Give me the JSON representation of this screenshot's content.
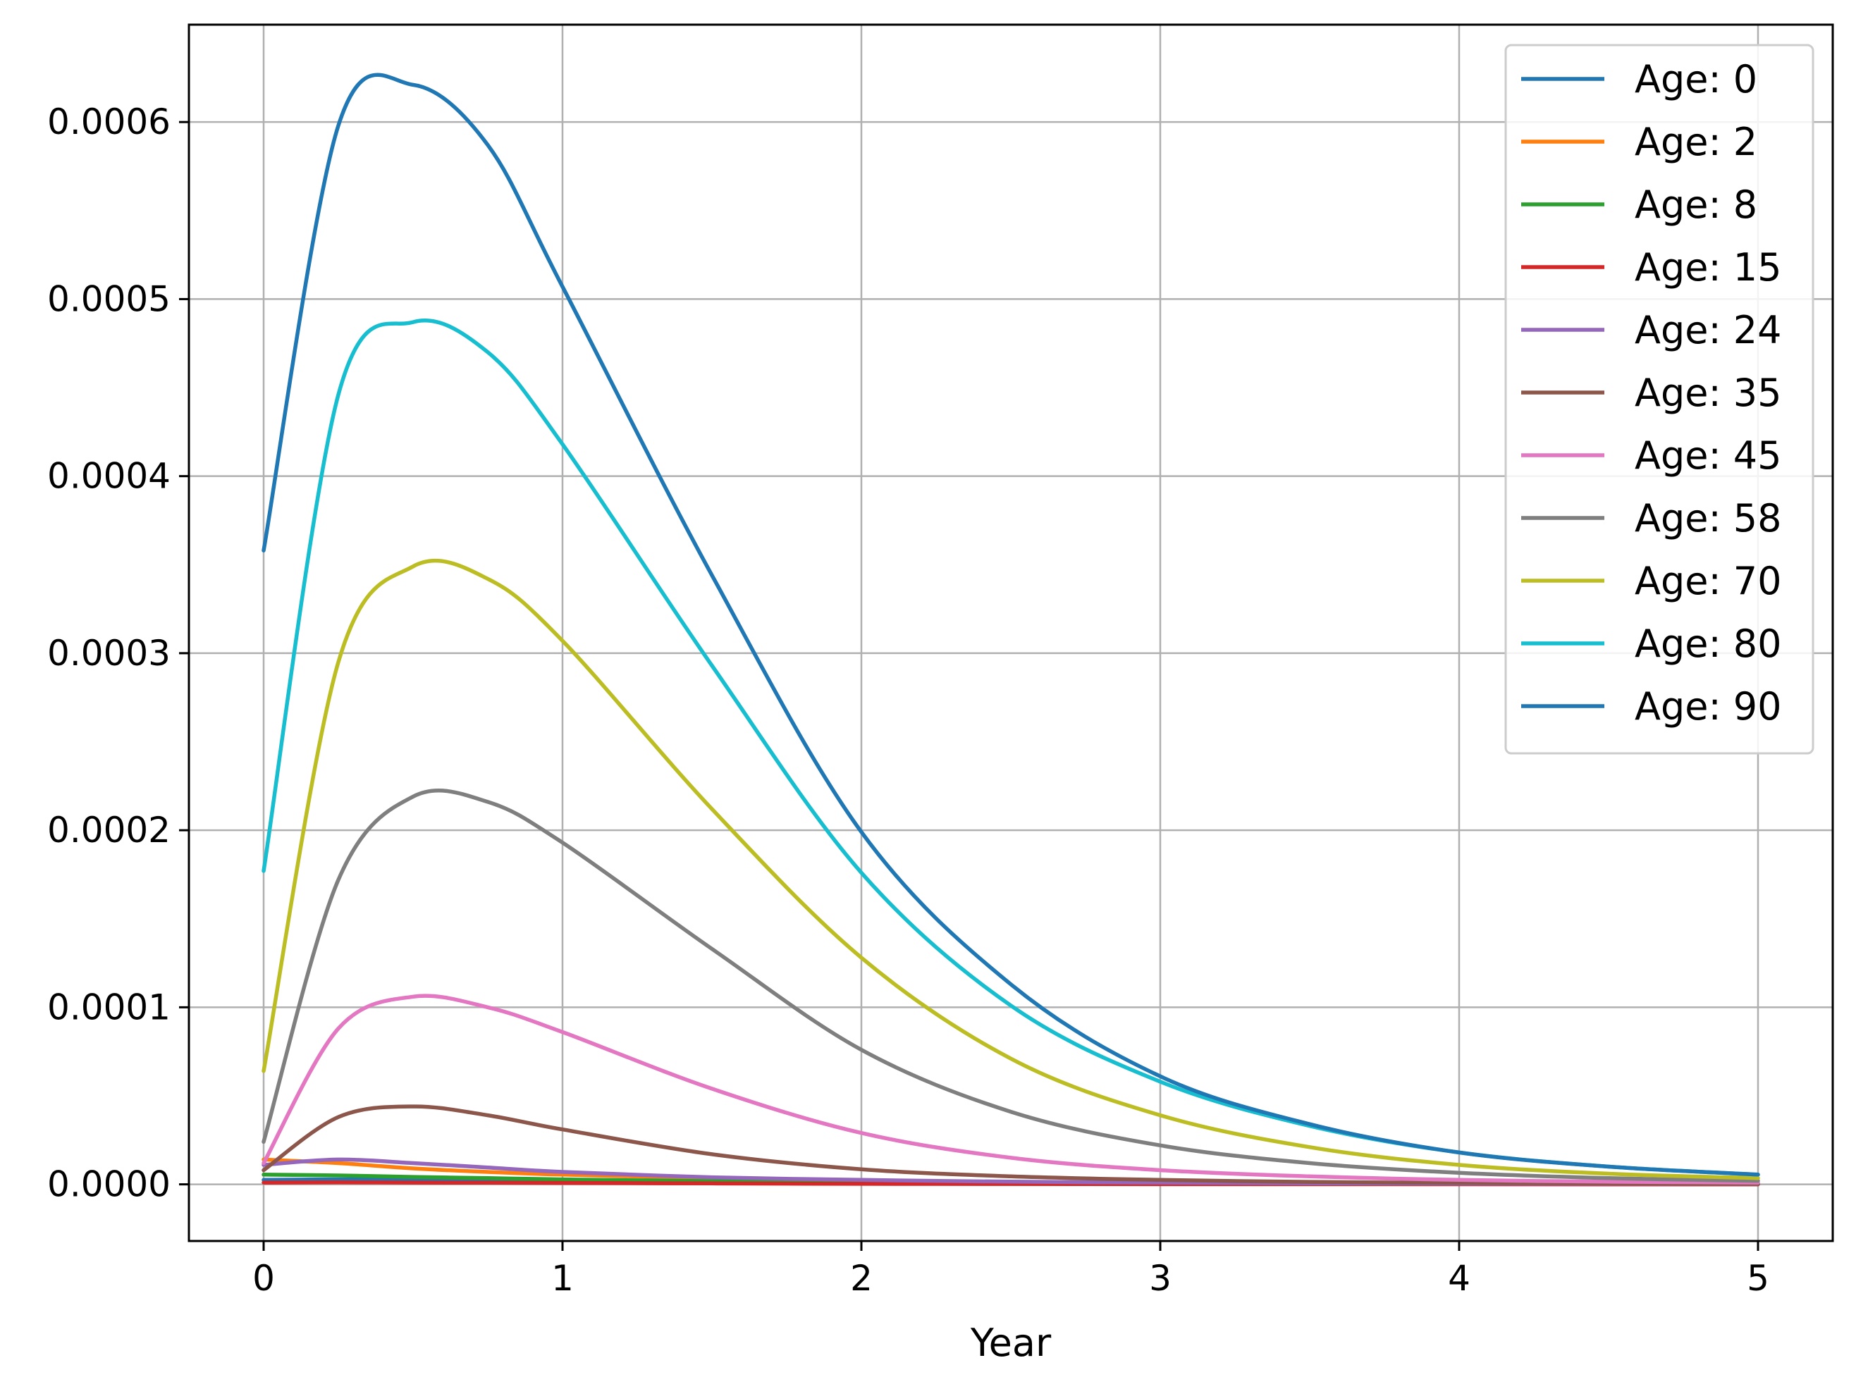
{
  "chart_data": {
    "type": "line",
    "title": "",
    "xlabel": "Year",
    "ylabel": "",
    "xlim": [
      -0.25,
      5.25
    ],
    "ylim": [
      -3.2e-05,
      0.000655
    ],
    "x_ticks": [
      0,
      1,
      2,
      3,
      4,
      5
    ],
    "x_tick_labels": [
      "0",
      "1",
      "2",
      "3",
      "4",
      "5"
    ],
    "y_ticks": [
      0,
      0.0001,
      0.0002,
      0.0003,
      0.0004,
      0.0005,
      0.0006
    ],
    "y_tick_labels": [
      "0.0000",
      "0.0001",
      "0.0002",
      "0.0003",
      "0.0004",
      "0.0005",
      "0.0006"
    ],
    "grid": true,
    "legend_position": "top-right",
    "x": [
      0,
      0.25,
      0.5,
      0.75,
      1,
      1.5,
      2,
      2.5,
      3,
      3.5,
      4,
      4.5,
      5
    ],
    "series": [
      {
        "name": "Age: 0",
        "color": "#1f77b4",
        "values": [
          2.5e-06,
          2.8e-06,
          2.7e-06,
          2.4e-06,
          2e-06,
          1.3e-06,
          8e-07,
          5e-07,
          3e-07,
          2e-07,
          1e-07,
          1e-07,
          1e-07
        ]
      },
      {
        "name": "Age: 2",
        "color": "#ff7f0e",
        "values": [
          1.4e-05,
          1.2e-05,
          9e-06,
          7e-06,
          5.5e-06,
          3.5e-06,
          2.2e-06,
          1.4e-06,
          9e-07,
          6e-07,
          4e-07,
          3e-07,
          2e-07
        ]
      },
      {
        "name": "Age: 8",
        "color": "#2ca02c",
        "values": [
          5.5e-06,
          5e-06,
          4.2e-06,
          3.5e-06,
          2.8e-06,
          1.8e-06,
          1.1e-06,
          7e-07,
          4e-07,
          3e-07,
          2e-07,
          1e-07,
          1e-07
        ]
      },
      {
        "name": "Age: 15",
        "color": "#d62728",
        "values": [
          1e-06,
          1.1e-06,
          1e-06,
          9e-07,
          8e-07,
          5e-07,
          3e-07,
          2e-07,
          1e-07,
          1e-07,
          1e-07,
          0,
          0
        ]
      },
      {
        "name": "Age: 24",
        "color": "#9467bd",
        "values": [
          1.1e-05,
          1.4e-05,
          1.2e-05,
          9.5e-06,
          7e-06,
          4e-06,
          2.5e-06,
          1.5e-06,
          1e-06,
          6e-07,
          4e-07,
          3e-07,
          2e-07
        ]
      },
      {
        "name": "Age: 35",
        "color": "#8c564b",
        "values": [
          8e-06,
          3.8e-05,
          4.4e-05,
          3.9e-05,
          3.1e-05,
          1.7e-05,
          8.5e-06,
          4.5e-06,
          2.5e-06,
          1.4e-06,
          8e-07,
          5e-07,
          3e-07
        ]
      },
      {
        "name": "Age: 45",
        "color": "#e377c2",
        "values": [
          1.2e-05,
          8.8e-05,
          0.000106,
          0.0001,
          8.6e-05,
          5.4e-05,
          2.9e-05,
          1.5e-05,
          8e-06,
          4.5e-06,
          2.5e-06,
          1.5e-06,
          1e-06
        ]
      },
      {
        "name": "Age: 58",
        "color": "#7f7f7f",
        "values": [
          2.4e-05,
          0.000172,
          0.000219,
          0.000216,
          0.000193,
          0.000133,
          7.6e-05,
          4.1e-05,
          2.2e-05,
          1.2e-05,
          6.5e-06,
          3.5e-06,
          2e-06
        ]
      },
      {
        "name": "Age: 70",
        "color": "#bcbd22",
        "values": [
          6.4e-05,
          0.000295,
          0.000349,
          0.000342,
          0.000307,
          0.000212,
          0.000128,
          7.1e-05,
          3.9e-05,
          2.1e-05,
          1.1e-05,
          6e-06,
          3.5e-06
        ]
      },
      {
        "name": "Age: 80",
        "color": "#17becf",
        "values": [
          0.000177,
          0.000446,
          0.000487,
          0.00047,
          0.000418,
          0.000293,
          0.000176,
          0.000101,
          5.8e-05,
          3.3e-05,
          1.8e-05,
          1e-05,
          5.5e-06
        ]
      },
      {
        "name": "Age: 90",
        "color": "#1f77b4",
        "values": [
          0.000358,
          0.000598,
          0.000621,
          0.000587,
          0.000507,
          0.000344,
          0.000199,
          0.000113,
          6.1e-05,
          3.4e-05,
          1.8e-05,
          1e-05,
          5.5e-06
        ]
      }
    ]
  }
}
